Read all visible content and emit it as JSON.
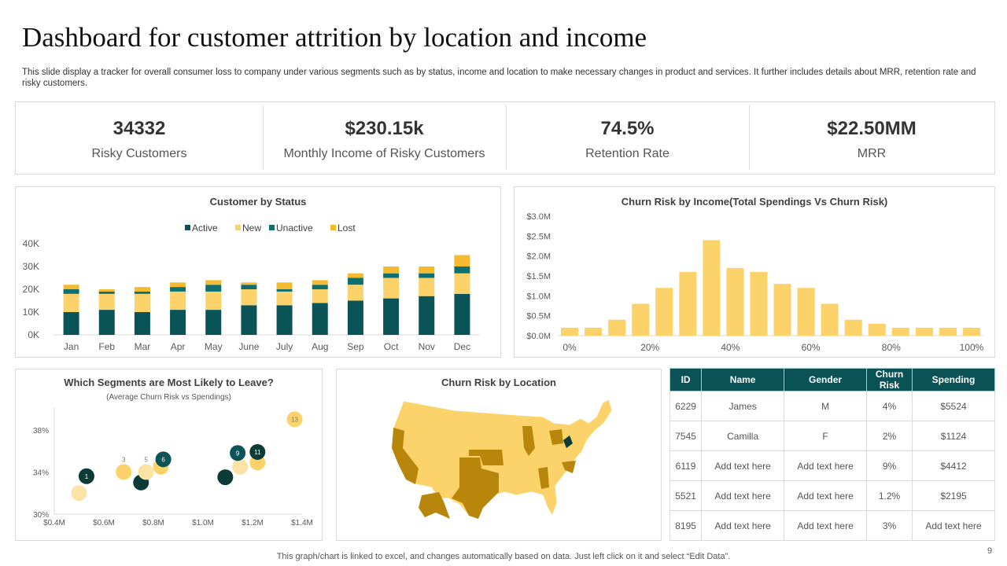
{
  "title": "Dashboard for customer attrition by location and income",
  "description": "This slide display a tracker for overall consumer loss to company under various segments such as by status, income and location to make necessary changes in product and services. It further includes details about MRR, retention rate and risky customers.",
  "kpis": [
    {
      "value": "34332",
      "label": "Risky Customers"
    },
    {
      "value": "$230.15k",
      "label": "Monthly Income  of Risky Customers"
    },
    {
      "value": "74.5%",
      "label": "Retention Rate"
    },
    {
      "value": "$22.50MM",
      "label": "MRR"
    }
  ],
  "colors": {
    "dark": "#0b3b36",
    "active": "#0a5356",
    "teal": "#0f6e6e",
    "yellow": "#fcd36b",
    "gold": "#f5bb30",
    "light": "#fbe3a6",
    "map_dark": "#b8860b"
  },
  "chart_data": [
    {
      "type": "bar",
      "stacked": true,
      "title": "Customer  by Status",
      "legend_position": "top",
      "categories": [
        "Jan",
        "Feb",
        "Mar",
        "Apr",
        "May",
        "June",
        "July",
        "Aug",
        "Sep",
        "Oct",
        "Nov",
        "Dec"
      ],
      "yticks": [
        "0K",
        "10K",
        "20K",
        "30K",
        "40K"
      ],
      "ylim": [
        0,
        40000
      ],
      "series": [
        {
          "name": "Active",
          "values": [
            10000,
            11000,
            10000,
            11000,
            11000,
            13000,
            13000,
            14000,
            15000,
            16000,
            17000,
            18000
          ]
        },
        {
          "name": "New",
          "values": [
            8000,
            7000,
            8000,
            8000,
            8000,
            7000,
            6000,
            6000,
            7000,
            9000,
            8000,
            9000
          ]
        },
        {
          "name": "Unactive",
          "values": [
            2000,
            1000,
            1000,
            2000,
            3000,
            2000,
            1000,
            2000,
            3000,
            2000,
            2000,
            3000
          ]
        },
        {
          "name": "Lost",
          "values": [
            2000,
            1000,
            2000,
            2000,
            2000,
            1000,
            3000,
            2000,
            2000,
            3000,
            3000,
            5000
          ]
        }
      ]
    },
    {
      "type": "bar",
      "title": "Churn Risk by Income(Total Spendings Vs Churn Risk)",
      "xticks": [
        "0%",
        "20%",
        "40%",
        "60%",
        "80%",
        "100%"
      ],
      "yticks": [
        "$0.0M",
        "$0.5M",
        "$1.0M",
        "$1.5M",
        "$2.0M",
        "$2.5M",
        "$3.0M"
      ],
      "ylim": [
        0,
        3.0
      ],
      "values": [
        0.2,
        0.2,
        0.4,
        0.8,
        1.2,
        1.6,
        2.4,
        1.7,
        1.6,
        1.3,
        1.2,
        0.8,
        0.4,
        0.3,
        0.2,
        0.2,
        0.2,
        0.2
      ]
    },
    {
      "type": "scatter",
      "title": "Which Segments are Most Likely to Leave?",
      "subtitle": "(Average Churn Risk vs Spendings)",
      "xticks": [
        "$0.4M",
        "$0.6M",
        "$0.8M",
        "$1.0M",
        "$1.2M",
        "$1.4M"
      ],
      "xlim": [
        0.4,
        1.4
      ],
      "yticks": [
        "30%",
        "34%",
        "38%"
      ],
      "ylim": [
        30,
        40
      ],
      "points": [
        {
          "x": 0.5,
          "y": 32.0,
          "c": "light",
          "label": ""
        },
        {
          "x": 0.53,
          "y": 33.6,
          "c": "dark",
          "label": "1"
        },
        {
          "x": 0.68,
          "y": 34.0,
          "c": "yellow",
          "label": "3"
        },
        {
          "x": 0.75,
          "y": 33.0,
          "c": "dark",
          "label": ""
        },
        {
          "x": 0.77,
          "y": 34.0,
          "c": "light",
          "label": "5"
        },
        {
          "x": 0.83,
          "y": 34.5,
          "c": "yellow",
          "label": ""
        },
        {
          "x": 0.84,
          "y": 35.2,
          "c": "teal",
          "label": "6"
        },
        {
          "x": 1.09,
          "y": 33.5,
          "c": "dark",
          "label": ""
        },
        {
          "x": 1.15,
          "y": 34.5,
          "c": "light",
          "label": ""
        },
        {
          "x": 1.14,
          "y": 35.8,
          "c": "teal",
          "label": "9"
        },
        {
          "x": 1.22,
          "y": 34.9,
          "c": "yellow",
          "label": ""
        },
        {
          "x": 1.22,
          "y": 35.9,
          "c": "dark",
          "label": "11"
        },
        {
          "x": 1.37,
          "y": 39.0,
          "c": "yellow",
          "label": "13"
        }
      ]
    }
  ],
  "map": {
    "title": "Churn Risk by Location"
  },
  "table": {
    "headers": [
      "ID",
      "Name",
      "Gender",
      "Churn Risk",
      "Spending"
    ],
    "rows": [
      [
        "6229",
        "James",
        "M",
        "4%",
        "$5524"
      ],
      [
        "7545",
        "Camilla",
        "F",
        "2%",
        "$1124"
      ],
      [
        "6119",
        "Add text here",
        "Add text here",
        "9%",
        "$4412"
      ],
      [
        "5521",
        "Add text here",
        "Add text here",
        "1.2%",
        "$2195"
      ],
      [
        "8195",
        "Add text here",
        "Add text here",
        "3%",
        "Add text here"
      ]
    ]
  },
  "footer": "This graph/chart is linked to excel,  and changes automatically based on data. Just left click on it and select “Edit Data”.",
  "page_number": "9"
}
